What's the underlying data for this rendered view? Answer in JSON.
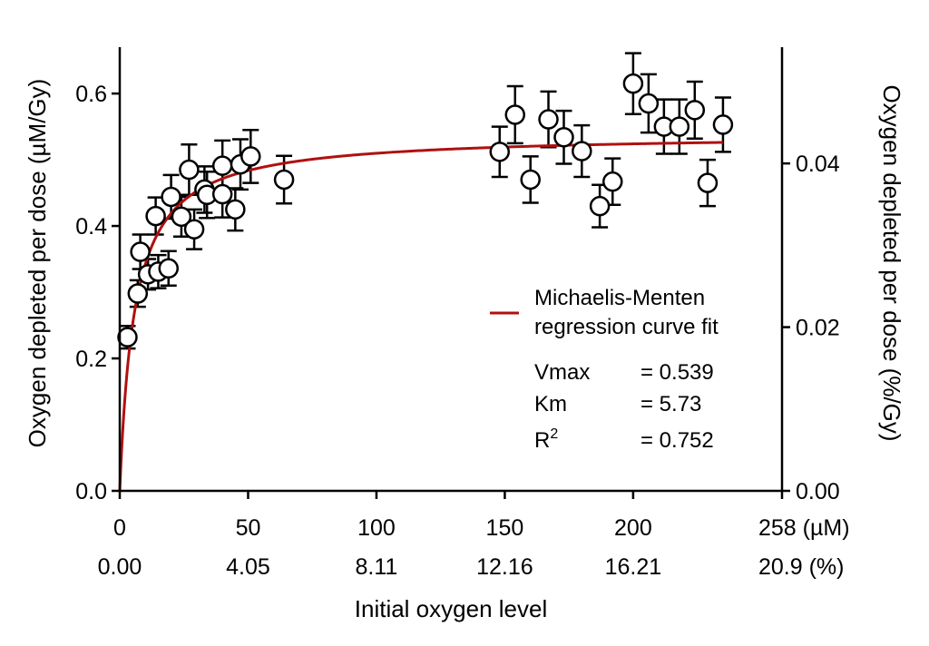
{
  "chart_data": {
    "type": "scatter",
    "xlabel": "Initial oxygen level",
    "ylabel_left": "Oxygen depleted per dose (µM/Gy)",
    "ylabel_right": "Oxygen depleted per dose (%/Gy)",
    "xlim": [
      0,
      258
    ],
    "ylim": [
      0,
      0.67
    ],
    "x_ticks": [
      0,
      50,
      100,
      150,
      200,
      258
    ],
    "x_tick_labels_uM": [
      "0",
      "50",
      "100",
      "150",
      "200",
      "258 (µM)"
    ],
    "x_tick_labels_pct": [
      "0.00",
      "4.05",
      "8.11",
      "12.16",
      "16.21",
      "20.9 (%)"
    ],
    "y_left_ticks": [
      0,
      0.2,
      0.4,
      0.6
    ],
    "y_left_tick_labels": [
      "0.0",
      "0.2",
      "0.4",
      "0.6"
    ],
    "y_right_ticks_pct": [
      0,
      0.02,
      0.04
    ],
    "y_right_tick_labels": [
      "0.00",
      "0.02",
      "0.04"
    ],
    "y_right_scale_factor": 0.0809,
    "series": [
      {
        "name": "",
        "marker": "open-circle",
        "points": [
          {
            "x": 3,
            "y": 0.232,
            "err": 0.017
          },
          {
            "x": 7,
            "y": 0.298,
            "err": 0.02
          },
          {
            "x": 8,
            "y": 0.361,
            "err": 0.026
          },
          {
            "x": 11,
            "y": 0.327,
            "err": 0.023
          },
          {
            "x": 14,
            "y": 0.415,
            "err": 0.028
          },
          {
            "x": 15,
            "y": 0.331,
            "err": 0.025
          },
          {
            "x": 19,
            "y": 0.336,
            "err": 0.026
          },
          {
            "x": 20,
            "y": 0.444,
            "err": 0.033
          },
          {
            "x": 24,
            "y": 0.414,
            "err": 0.03
          },
          {
            "x": 27,
            "y": 0.485,
            "err": 0.038
          },
          {
            "x": 29,
            "y": 0.395,
            "err": 0.03
          },
          {
            "x": 33,
            "y": 0.455,
            "err": 0.035
          },
          {
            "x": 34,
            "y": 0.447,
            "err": 0.035
          },
          {
            "x": 40,
            "y": 0.448,
            "err": 0.035
          },
          {
            "x": 40,
            "y": 0.491,
            "err": 0.038
          },
          {
            "x": 45,
            "y": 0.425,
            "err": 0.032
          },
          {
            "x": 47,
            "y": 0.493,
            "err": 0.038
          },
          {
            "x": 51,
            "y": 0.505,
            "err": 0.04
          },
          {
            "x": 64,
            "y": 0.47,
            "err": 0.036
          },
          {
            "x": 148,
            "y": 0.512,
            "err": 0.038
          },
          {
            "x": 154,
            "y": 0.568,
            "err": 0.043
          },
          {
            "x": 160,
            "y": 0.47,
            "err": 0.035
          },
          {
            "x": 167,
            "y": 0.561,
            "err": 0.042
          },
          {
            "x": 173,
            "y": 0.534,
            "err": 0.04
          },
          {
            "x": 180,
            "y": 0.513,
            "err": 0.039
          },
          {
            "x": 187,
            "y": 0.43,
            "err": 0.032
          },
          {
            "x": 192,
            "y": 0.467,
            "err": 0.035
          },
          {
            "x": 200,
            "y": 0.615,
            "err": 0.046
          },
          {
            "x": 206,
            "y": 0.585,
            "err": 0.044
          },
          {
            "x": 212,
            "y": 0.55,
            "err": 0.041
          },
          {
            "x": 218,
            "y": 0.55,
            "err": 0.041
          },
          {
            "x": 224,
            "y": 0.575,
            "err": 0.043
          },
          {
            "x": 229,
            "y": 0.465,
            "err": 0.035
          },
          {
            "x": 235,
            "y": 0.553,
            "err": 0.041
          }
        ]
      }
    ],
    "fit": {
      "name": "Michaelis-Menten regression curve fit",
      "model": "michaelis-menten",
      "vmax": 0.539,
      "km": 5.73,
      "x_range": [
        0,
        235
      ],
      "color": "#b01010"
    },
    "legend": {
      "line1": "Michaelis-Menten",
      "line2": "regression curve fit",
      "position": "right"
    },
    "stats": [
      {
        "label": "Vmax",
        "sup": "",
        "value": "= 0.539"
      },
      {
        "label": "Km",
        "sup": "",
        "value": "= 5.73"
      },
      {
        "label": "R",
        "sup": "2",
        "value": "= 0.752"
      }
    ],
    "grid": false
  }
}
